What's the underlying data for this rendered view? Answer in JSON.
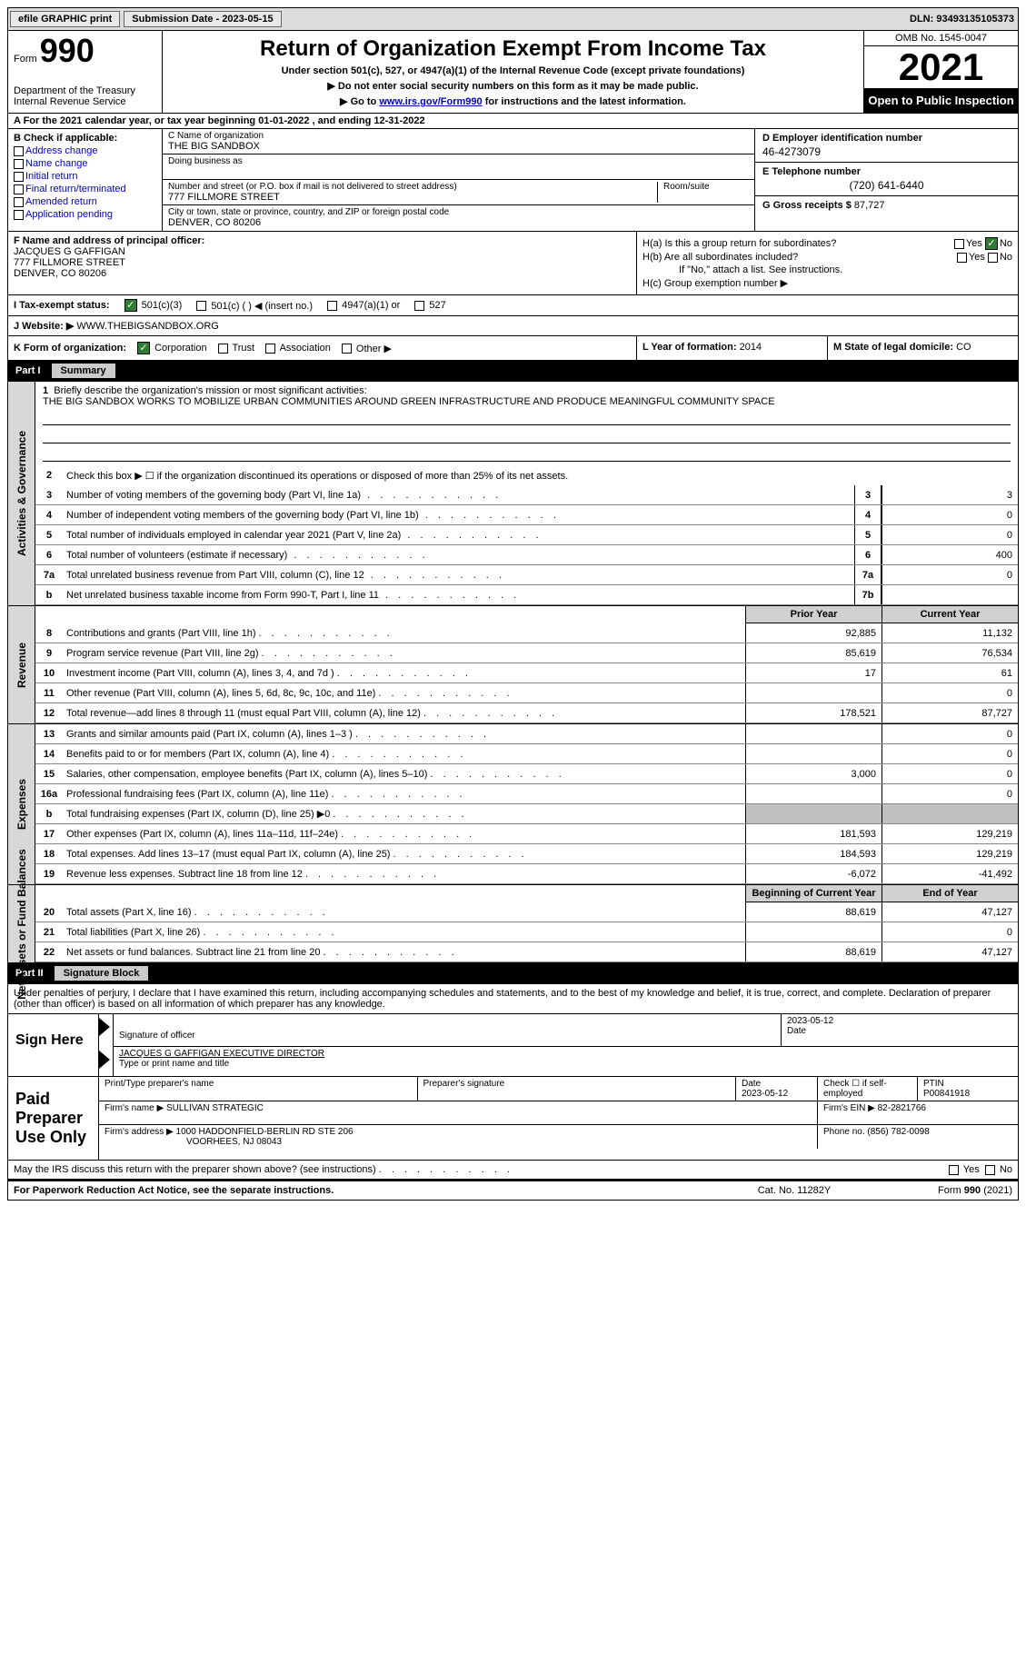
{
  "topbar": {
    "efile_label": "efile GRAPHIC print",
    "submission_label": "Submission Date - 2023-05-15",
    "dln_label": "DLN: 93493135105373"
  },
  "header": {
    "form_word": "Form",
    "form_number": "990",
    "dept": "Department of the Treasury",
    "irs": "Internal Revenue Service",
    "title": "Return of Organization Exempt From Income Tax",
    "subtitle1": "Under section 501(c), 527, or 4947(a)(1) of the Internal Revenue Code (except private foundations)",
    "subtitle2": "▶ Do not enter social security numbers on this form as it may be made public.",
    "subtitle3_pre": "▶ Go to ",
    "subtitle3_link": "www.irs.gov/Form990",
    "subtitle3_post": " for instructions and the latest information.",
    "omb": "OMB No. 1545-0047",
    "year": "2021",
    "inspection": "Open to Public Inspection"
  },
  "row_a": "A  For the 2021 calendar year, or tax year beginning 01-01-2022    , and ending 12-31-2022",
  "section_b": {
    "title": "B Check if applicable:",
    "items": {
      "addr": "Address change",
      "name": "Name change",
      "initial": "Initial return",
      "final": "Final return/terminated",
      "amended": "Amended return",
      "app": "Application pending"
    }
  },
  "section_c": {
    "name_lbl": "C Name of organization",
    "name_val": "THE BIG SANDBOX",
    "dba_lbl": "Doing business as",
    "street_lbl": "Number and street (or P.O. box if mail is not delivered to street address)",
    "street_val": "777 FILLMORE STREET",
    "room_lbl": "Room/suite",
    "city_lbl": "City or town, state or province, country, and ZIP or foreign postal code",
    "city_val": "DENVER, CO  80206"
  },
  "section_d": {
    "ein_lbl": "D Employer identification number",
    "ein_val": "46-4273079",
    "phone_lbl": "E Telephone number",
    "phone_val": "(720) 641-6440",
    "gross_lbl": "G Gross receipts $",
    "gross_val": "87,727"
  },
  "section_f": {
    "lbl": "F Name and address of principal officer:",
    "name": "JACQUES G GAFFIGAN",
    "street": "777 FILLMORE STREET",
    "city": "DENVER, CO  80206"
  },
  "section_h": {
    "ha": "H(a)  Is this a group return for subordinates?",
    "hb": "H(b)  Are all subordinates included?",
    "hb_note": "If \"No,\" attach a list. See instructions.",
    "hc": "H(c)  Group exemption number ▶",
    "yes": "Yes",
    "no": "No"
  },
  "row_i": {
    "lbl": "I    Tax-exempt status:",
    "opt1": "501(c)(3)",
    "opt2": "501(c) (  ) ◀ (insert no.)",
    "opt3": "4947(a)(1) or",
    "opt4": "527"
  },
  "row_j": {
    "lbl": "J   Website: ▶",
    "val": "WWW.THEBIGSANDBOX.ORG"
  },
  "row_k": {
    "lbl": "K Form of organization:",
    "corp": "Corporation",
    "trust": "Trust",
    "assoc": "Association",
    "other": "Other ▶",
    "l_lbl": "L Year of formation:",
    "l_val": "2014",
    "m_lbl": "M State of legal domicile:",
    "m_val": "CO"
  },
  "part1": {
    "num": "Part I",
    "title": "Summary",
    "vtab_ag": "Activities & Governance",
    "vtab_rev": "Revenue",
    "vtab_exp": "Expenses",
    "vtab_net": "Net Assets or Fund Balances",
    "line1_lbl": "Briefly describe the organization's mission or most significant activities:",
    "line1_val": "THE BIG SANDBOX WORKS TO MOBILIZE URBAN COMMUNITIES AROUND GREEN INFRASTRUCTURE AND PRODUCE MEANINGFUL COMMUNITY SPACE",
    "line2": "Check this box ▶ ☐  if the organization discontinued its operations or disposed of more than 25% of its net assets.",
    "lines_ag": [
      {
        "n": "3",
        "d": "Number of voting members of the governing body (Part VI, line 1a)",
        "b": "3",
        "v": "3"
      },
      {
        "n": "4",
        "d": "Number of independent voting members of the governing body (Part VI, line 1b)",
        "b": "4",
        "v": "0"
      },
      {
        "n": "5",
        "d": "Total number of individuals employed in calendar year 2021 (Part V, line 2a)",
        "b": "5",
        "v": "0"
      },
      {
        "n": "6",
        "d": "Total number of volunteers (estimate if necessary)",
        "b": "6",
        "v": "400"
      },
      {
        "n": "7a",
        "d": "Total unrelated business revenue from Part VIII, column (C), line 12",
        "b": "7a",
        "v": "0"
      },
      {
        "n": "b",
        "d": "Net unrelated business taxable income from Form 990-T, Part I, line 11",
        "b": "7b",
        "v": ""
      }
    ],
    "col_prior": "Prior Year",
    "col_current": "Current Year",
    "col_begin": "Beginning of Current Year",
    "col_end": "End of Year",
    "lines_rev": [
      {
        "n": "8",
        "d": "Contributions and grants (Part VIII, line 1h)",
        "p": "92,885",
        "c": "11,132"
      },
      {
        "n": "9",
        "d": "Program service revenue (Part VIII, line 2g)",
        "p": "85,619",
        "c": "76,534"
      },
      {
        "n": "10",
        "d": "Investment income (Part VIII, column (A), lines 3, 4, and 7d )",
        "p": "17",
        "c": "61"
      },
      {
        "n": "11",
        "d": "Other revenue (Part VIII, column (A), lines 5, 6d, 8c, 9c, 10c, and 11e)",
        "p": "",
        "c": "0"
      },
      {
        "n": "12",
        "d": "Total revenue—add lines 8 through 11 (must equal Part VIII, column (A), line 12)",
        "p": "178,521",
        "c": "87,727"
      }
    ],
    "lines_exp": [
      {
        "n": "13",
        "d": "Grants and similar amounts paid (Part IX, column (A), lines 1–3 )",
        "p": "",
        "c": "0"
      },
      {
        "n": "14",
        "d": "Benefits paid to or for members (Part IX, column (A), line 4)",
        "p": "",
        "c": "0"
      },
      {
        "n": "15",
        "d": "Salaries, other compensation, employee benefits (Part IX, column (A), lines 5–10)",
        "p": "3,000",
        "c": "0"
      },
      {
        "n": "16a",
        "d": "Professional fundraising fees (Part IX, column (A), line 11e)",
        "p": "",
        "c": "0"
      },
      {
        "n": "b",
        "d": "Total fundraising expenses (Part IX, column (D), line 25) ▶0",
        "p": "shaded",
        "c": "shaded"
      },
      {
        "n": "17",
        "d": "Other expenses (Part IX, column (A), lines 11a–11d, 11f–24e)",
        "p": "181,593",
        "c": "129,219"
      },
      {
        "n": "18",
        "d": "Total expenses. Add lines 13–17 (must equal Part IX, column (A), line 25)",
        "p": "184,593",
        "c": "129,219"
      },
      {
        "n": "19",
        "d": "Revenue less expenses. Subtract line 18 from line 12",
        "p": "-6,072",
        "c": "-41,492"
      }
    ],
    "lines_net": [
      {
        "n": "20",
        "d": "Total assets (Part X, line 16)",
        "p": "88,619",
        "c": "47,127"
      },
      {
        "n": "21",
        "d": "Total liabilities (Part X, line 26)",
        "p": "",
        "c": "0"
      },
      {
        "n": "22",
        "d": "Net assets or fund balances. Subtract line 21 from line 20",
        "p": "88,619",
        "c": "47,127"
      }
    ]
  },
  "part2": {
    "num": "Part II",
    "title": "Signature Block",
    "penalties": "Under penalties of perjury, I declare that I have examined this return, including accompanying schedules and statements, and to the best of my knowledge and belief, it is true, correct, and complete. Declaration of preparer (other than officer) is based on all information of which preparer has any knowledge.",
    "sign_here": "Sign Here",
    "sig_officer_lbl": "Signature of officer",
    "sig_date": "2023-05-12",
    "date_lbl": "Date",
    "officer_name": "JACQUES G GAFFIGAN  EXECUTIVE DIRECTOR",
    "officer_name_lbl": "Type or print name and title",
    "paid_prep": "Paid Preparer Use Only",
    "prep_name_lbl": "Print/Type preparer's name",
    "prep_sig_lbl": "Preparer's signature",
    "prep_date_lbl": "Date",
    "prep_date": "2023-05-12",
    "self_emp": "Check ☐ if self-employed",
    "ptin_lbl": "PTIN",
    "ptin": "P00841918",
    "firm_name_lbl": "Firm's name    ▶",
    "firm_name": "SULLIVAN STRATEGIC",
    "firm_ein_lbl": "Firm's EIN ▶",
    "firm_ein": "82-2821766",
    "firm_addr_lbl": "Firm's address ▶",
    "firm_addr1": "1000 HADDONFIELD-BERLIN RD STE 206",
    "firm_addr2": "VOORHEES, NJ  08043",
    "firm_phone_lbl": "Phone no.",
    "firm_phone": "(856) 782-0098",
    "discuss": "May the IRS discuss this return with the preparer shown above? (see instructions)",
    "yes": "Yes",
    "no": "No"
  },
  "footer": {
    "left": "For Paperwork Reduction Act Notice, see the separate instructions.",
    "mid": "Cat. No. 11282Y",
    "right": "Form 990 (2021)"
  }
}
